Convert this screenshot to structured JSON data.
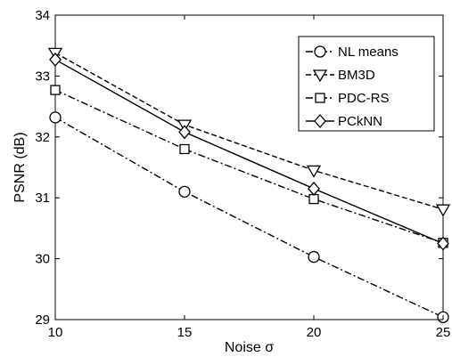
{
  "chart_data": {
    "type": "line",
    "title": "",
    "xlabel": "Noise σ",
    "ylabel": "PSNR (dB)",
    "x": [
      10,
      15,
      20,
      25
    ],
    "xlim": [
      10,
      25
    ],
    "ylim": [
      29,
      34
    ],
    "xticks": [
      "10",
      "15",
      "20",
      "25"
    ],
    "yticks": [
      "29",
      "30",
      "31",
      "32",
      "33",
      "34"
    ],
    "grid": false,
    "legend_position": "top-right",
    "series": [
      {
        "name": "NL means",
        "values": [
          32.32,
          31.1,
          30.03,
          29.04
        ],
        "marker": "circle",
        "dash": "dash-dot"
      },
      {
        "name": "BM3D",
        "values": [
          33.38,
          32.2,
          31.45,
          30.81
        ],
        "marker": "triangle-down",
        "dash": "dashed"
      },
      {
        "name": "PDC-RS",
        "values": [
          32.77,
          31.8,
          30.98,
          30.26
        ],
        "marker": "square",
        "dash": "dash-dot"
      },
      {
        "name": "PCkNN",
        "values": [
          33.27,
          32.08,
          31.15,
          30.25
        ],
        "marker": "diamond",
        "dash": "solid"
      }
    ]
  }
}
